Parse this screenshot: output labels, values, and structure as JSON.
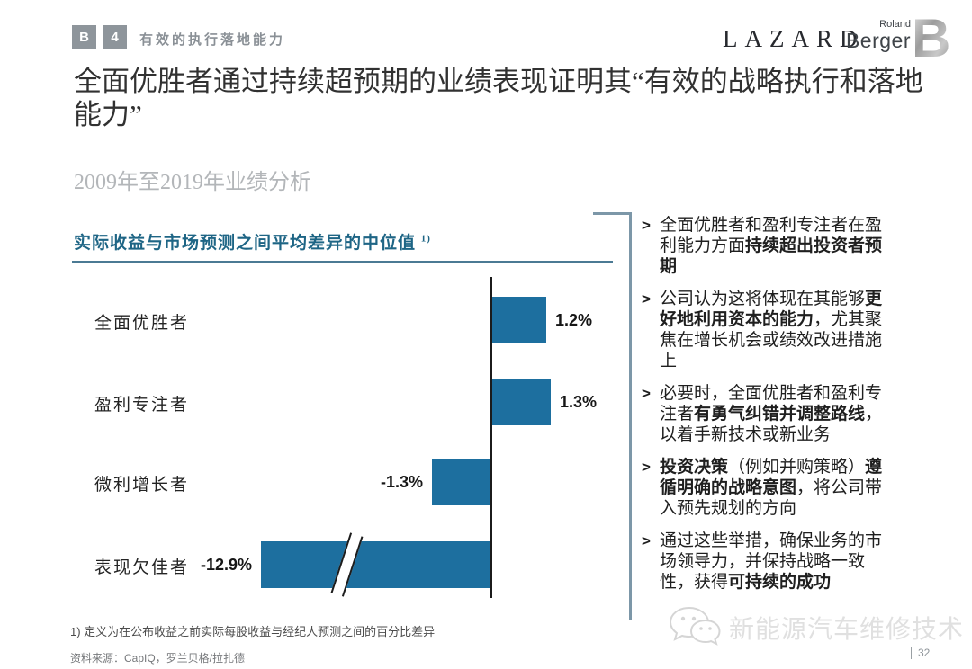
{
  "header": {
    "badge_letter": "B",
    "badge_number": "4",
    "section_label": "有效的执行落地能力",
    "logo_lazard": "LAZARD",
    "logo_rb_top": "Roland",
    "logo_rb_bottom": "Berger",
    "logo_rb_mark": "B"
  },
  "title": "全面优胜者通过持续超预期的业绩表现证明其“有效的战略执行和落地能力”",
  "subtitle": "2009年至2019年业绩分析",
  "chart": {
    "title": "实际收益与市场预测之间平均差异的中位值",
    "title_sup": "1)"
  },
  "chart_data": {
    "type": "bar",
    "orientation": "horizontal",
    "title": "实际收益与市场预测之间平均差异的中位值 1)",
    "categories": [
      "全面优胜者",
      "盈利专注者",
      "微利增长者",
      "表现欠佳者"
    ],
    "values": [
      1.2,
      1.3,
      -1.3,
      -12.9
    ],
    "value_labels": [
      "1.2%",
      "1.3%",
      "-1.3%",
      "-12.9%"
    ],
    "unit": "%",
    "axis_break_on_category": "表现欠佳者",
    "baseline": 0,
    "grid": false,
    "footnote": "1) 定义为在公布收益之前实际每股收益与经纪人预测之间的百分比差异"
  },
  "right_column": {
    "marker": ">",
    "bullets": [
      {
        "segments": [
          {
            "text": "全面优胜者和盈利专注者在盈利能力方面",
            "bold": false
          },
          {
            "text": "持续超出投资者预期",
            "bold": true
          }
        ]
      },
      {
        "segments": [
          {
            "text": "公司认为这将体现在其能够",
            "bold": false
          },
          {
            "text": "更好地利用资本的能力",
            "bold": true
          },
          {
            "text": "，尤其聚焦在增长机会或绩效改进措施上",
            "bold": false
          }
        ]
      },
      {
        "segments": [
          {
            "text": "必要时，全面优胜者和盈利专注者",
            "bold": false
          },
          {
            "text": "有勇气纠错并调整路线",
            "bold": true
          },
          {
            "text": "，以着手新技术或新业务",
            "bold": false
          }
        ]
      },
      {
        "segments": [
          {
            "text": "投资决策",
            "bold": true
          },
          {
            "text": "（例如并购策略）",
            "bold": false
          },
          {
            "text": "遵循明确的战略意图",
            "bold": true
          },
          {
            "text": "，将公司带入预先规划的方向",
            "bold": false
          }
        ]
      },
      {
        "segments": [
          {
            "text": "通过这些举措，确保业务的市场领导力，并保持战略一致性，获得",
            "bold": false
          },
          {
            "text": "可持续的成功",
            "bold": true
          }
        ]
      }
    ]
  },
  "footnote": "1) 定义为在公布收益之前实际每股收益与经纪人预测之间的百分比差异",
  "source": "资料来源：CapIQ，罗兰贝格/拉扎德",
  "watermark": "新能源汽车维修技术",
  "page_number": "32",
  "colors": {
    "bar": "#1d6f9f",
    "chart_title": "#1e6585",
    "underline": "#4b7a94",
    "bracket": "#7c97a8",
    "badge": "#8e959b"
  }
}
